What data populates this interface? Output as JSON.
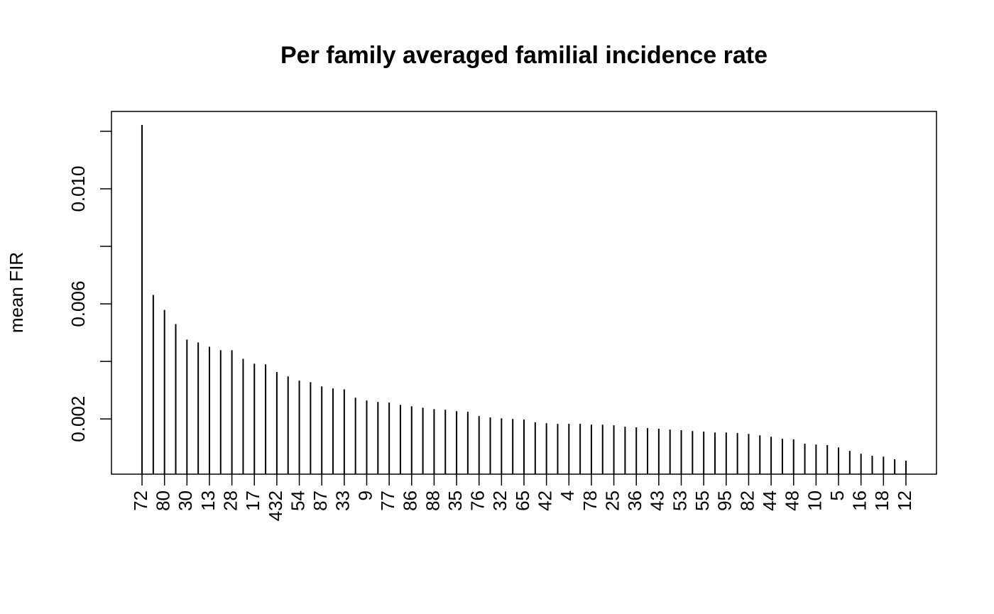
{
  "chart_data": {
    "type": "bar",
    "title": "Per family averaged familial incidence rate",
    "ylabel": "mean FIR",
    "categories": [
      "72",
      null,
      "80",
      null,
      "30",
      null,
      "13",
      null,
      "28",
      null,
      "17",
      null,
      "432",
      null,
      "54",
      null,
      "87",
      null,
      "33",
      null,
      "9",
      null,
      "77",
      null,
      "86",
      null,
      "88",
      null,
      "35",
      null,
      "76",
      null,
      "32",
      null,
      "65",
      null,
      "42",
      null,
      "4",
      null,
      "78",
      null,
      "25",
      null,
      "36",
      null,
      "43",
      null,
      "53",
      null,
      "55",
      null,
      "95",
      null,
      "82",
      null,
      "44",
      null,
      "48",
      null,
      "10",
      null,
      "5",
      null,
      "16",
      null,
      "18",
      null,
      "12"
    ],
    "values": [
      0.01222,
      0.00631,
      0.00579,
      0.0053,
      0.00476,
      0.00466,
      0.00451,
      0.00439,
      0.00439,
      0.00409,
      0.00392,
      0.0039,
      0.00363,
      0.00348,
      0.00333,
      0.00328,
      0.00313,
      0.00306,
      0.00303,
      0.00274,
      0.00264,
      0.00259,
      0.00257,
      0.00249,
      0.00244,
      0.00239,
      0.00234,
      0.00232,
      0.00227,
      0.00225,
      0.0021,
      0.00205,
      0.00202,
      0.002,
      0.00198,
      0.00188,
      0.00185,
      0.00183,
      0.00183,
      0.00183,
      0.0018,
      0.0018,
      0.00178,
      0.00173,
      0.00171,
      0.00168,
      0.00166,
      0.00163,
      0.00161,
      0.00158,
      0.00156,
      0.00153,
      0.00153,
      0.00151,
      0.00148,
      0.00143,
      0.00138,
      0.00131,
      0.00129,
      0.00114,
      0.00111,
      0.00109,
      0.00101,
      0.00089,
      0.00079,
      0.00072,
      0.00069,
      0.0006,
      0.00055
    ],
    "color": "#000000",
    "ylim": [
      8e-05,
      0.01269
    ],
    "yticks": [
      {
        "value": 0.002,
        "label": "0.002"
      },
      {
        "value": 0.006,
        "label": "0.006"
      },
      {
        "value": 0.01,
        "label": "0.010"
      }
    ],
    "yminorticks": [
      0.004,
      0.008,
      0.012
    ]
  }
}
